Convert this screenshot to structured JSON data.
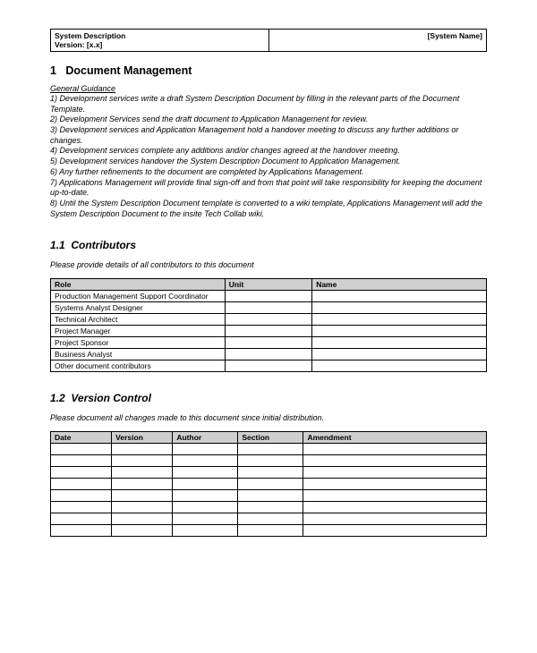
{
  "header": {
    "left_line1": "System Description",
    "left_line2": "Version: [x.x]",
    "right": "[System Name]"
  },
  "h1_num": "1",
  "h1_title": "Document Management",
  "guidance_title": "General Guidance",
  "guidance": [
    "1) Development services write a draft System Description Document by filling in the relevant parts of the Document Template.",
    "2) Development Services send the draft document to Application Management for review.",
    "3) Development services and Application Management hold a handover meeting to discuss any further additions or changes.",
    "4) Development services complete any additions and/or changes agreed at the handover meeting.",
    "5) Development services handover the System Description Document to Application Management.",
    "6) Any further refinements to the document are completed by Applications Management.",
    "7) Applications Management will provide final sign-off and from that point will take responsibility for keeping the document up-to-date.",
    "8) Until the System Description Document template is converted to a wiki template, Applications Management  will add the System Description Document to the insite Tech Collab wiki."
  ],
  "sec11": {
    "num": "1.1",
    "title": "Contributors",
    "instruction": "Please provide details of all contributors to this document",
    "cols": [
      "Role",
      "Unit",
      "Name"
    ],
    "col_widths": [
      "40%",
      "20%",
      "40%"
    ],
    "roles": [
      "Production Management Support Coordinator",
      "Systems Analyst Designer",
      "Technical Architect",
      "Project Manager",
      "Project Sponsor",
      "Business Analyst",
      "Other document contributors"
    ]
  },
  "sec12": {
    "num": "1.2",
    "title": "Version Control",
    "instruction": "Please document all changes made to this document since initial distribution.",
    "cols": [
      "Date",
      "Version",
      "Author",
      "Section",
      "Amendment"
    ],
    "col_widths": [
      "14%",
      "14%",
      "15%",
      "15%",
      "42%"
    ],
    "empty_rows": 8
  },
  "colors": {
    "header_bg": "#cfcfcf",
    "border": "#000000",
    "text": "#000000"
  }
}
